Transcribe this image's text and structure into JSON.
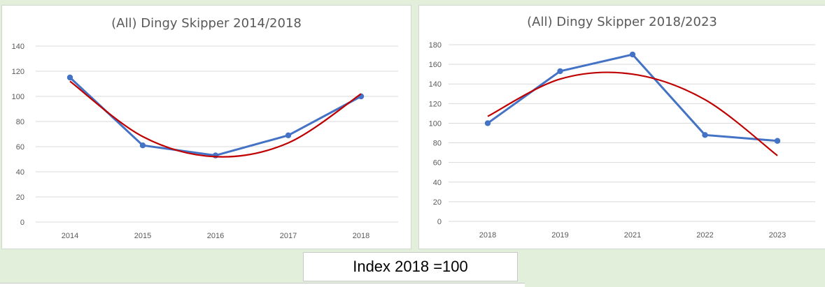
{
  "colors": {
    "series": "#4472c4",
    "trend": "#c00000",
    "background": "#e2efda"
  },
  "index_label": "Index 2018 =100",
  "chart_data": [
    {
      "type": "line",
      "title": "(All) Dingy Skipper 2014/2018",
      "categories": [
        "2014",
        "2015",
        "2016",
        "2017",
        "2018"
      ],
      "series": [
        {
          "values": [
            115,
            61,
            53,
            69,
            100
          ]
        }
      ],
      "trendline": {
        "type": "polynomial",
        "order": 2,
        "values": [
          112,
          68,
          52,
          63,
          102
        ]
      },
      "ylim": [
        0,
        140
      ],
      "yticks": [
        0,
        20,
        40,
        60,
        80,
        100,
        120,
        140
      ],
      "grid": true,
      "legend": "none"
    },
    {
      "type": "line",
      "title": "(All) Dingy Skipper 2018/2023",
      "categories": [
        "2018",
        "2019",
        "2021",
        "2022",
        "2023"
      ],
      "series": [
        {
          "values": [
            100,
            153,
            170,
            88,
            82
          ]
        }
      ],
      "trendline": {
        "type": "polynomial",
        "order": 2,
        "values": [
          107,
          145,
          150,
          124,
          67
        ]
      },
      "ylim": [
        0,
        180
      ],
      "yticks": [
        0,
        20,
        40,
        60,
        80,
        100,
        120,
        140,
        160,
        180
      ],
      "grid": true,
      "legend": "none"
    }
  ]
}
